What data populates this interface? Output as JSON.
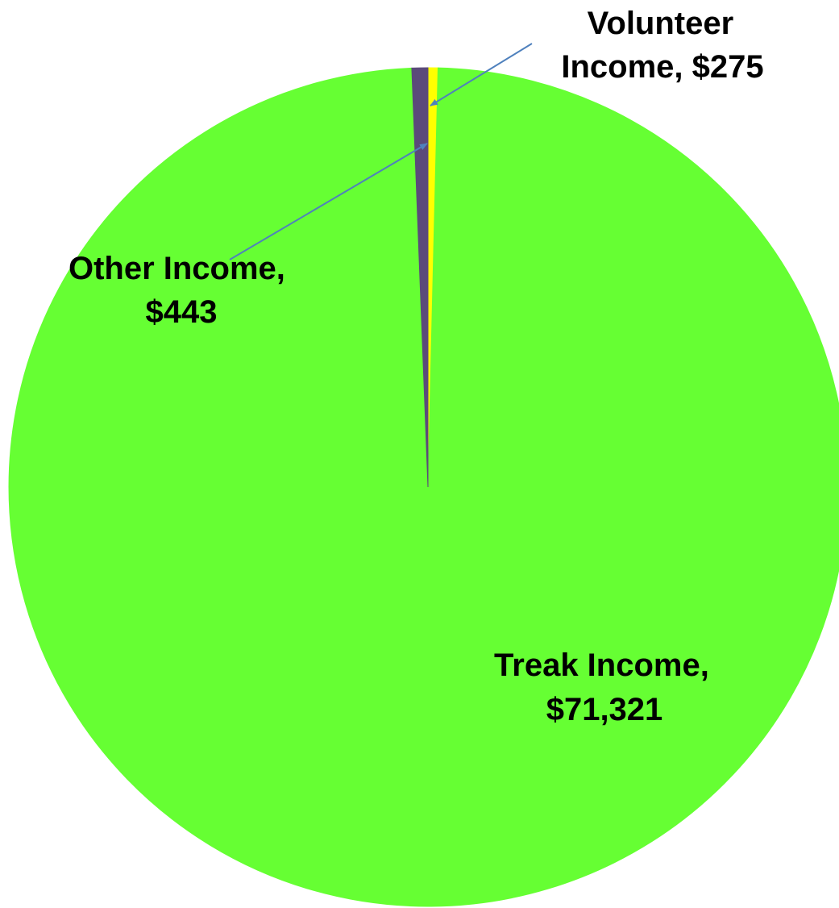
{
  "chart_data": {
    "type": "pie",
    "title": "",
    "slices": [
      {
        "name": "Treak Income",
        "value": 71321,
        "label_line1": "Treak Income,",
        "label_line2": "$71,321",
        "color": "#66ff33"
      },
      {
        "name": "Other Income",
        "value": 443,
        "label_line1": "Other Income,",
        "label_line2": "$443",
        "color": "#5b4a7a"
      },
      {
        "name": "Volunteer Income",
        "value": 275,
        "label_line1": "Volunteer",
        "label_line2": "Income,  $275",
        "color": "#ffff00"
      }
    ],
    "legend": false,
    "leader_lines": true,
    "leader_line_color": "#4f81bd"
  }
}
